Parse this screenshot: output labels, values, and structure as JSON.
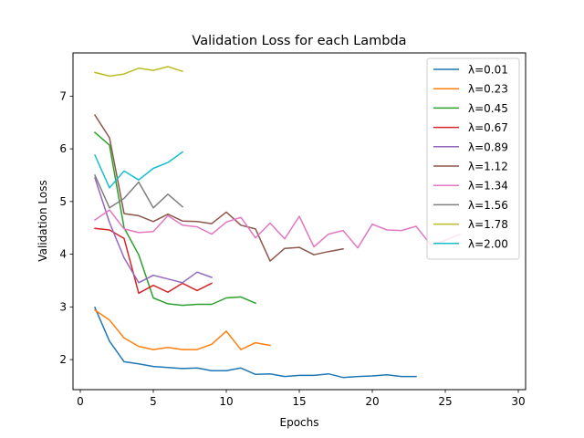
{
  "chart_data": {
    "type": "line",
    "title": "Validation Loss for each Lambda",
    "xlabel": "Epochs",
    "ylabel": "Validation Loss",
    "xlim": [
      -0.5,
      30.5
    ],
    "ylim": [
      1.43,
      7.82
    ],
    "xticks": [
      0,
      5,
      10,
      15,
      20,
      25,
      30
    ],
    "yticks": [
      2,
      3,
      4,
      5,
      6,
      7
    ],
    "grid": false,
    "legend_position": "top-right",
    "series": [
      {
        "name": "λ=0.01",
        "color": "#1f77b4",
        "x": [
          1,
          2,
          3,
          4,
          5,
          6,
          7,
          8,
          9,
          10,
          11,
          12,
          13,
          14,
          15,
          16,
          17,
          18,
          19,
          20,
          21,
          22,
          23
        ],
        "y": [
          2.99,
          2.35,
          1.96,
          1.92,
          1.87,
          1.85,
          1.83,
          1.84,
          1.79,
          1.79,
          1.84,
          1.72,
          1.73,
          1.68,
          1.7,
          1.7,
          1.73,
          1.66,
          1.68,
          1.69,
          1.71,
          1.68,
          1.68
        ]
      },
      {
        "name": "λ=0.23",
        "color": "#ff7f0e",
        "x": [
          1,
          2,
          3,
          4,
          5,
          6,
          7,
          8,
          9,
          10,
          11,
          12,
          13
        ],
        "y": [
          2.94,
          2.75,
          2.41,
          2.25,
          2.19,
          2.23,
          2.19,
          2.19,
          2.29,
          2.54,
          2.19,
          2.32,
          2.27
        ]
      },
      {
        "name": "λ=0.45",
        "color": "#2ca02c",
        "x": [
          1,
          2,
          3,
          4,
          5,
          6,
          7,
          8,
          9,
          10,
          11,
          12
        ],
        "y": [
          6.31,
          6.07,
          4.5,
          3.99,
          3.17,
          3.06,
          3.03,
          3.05,
          3.05,
          3.17,
          3.19,
          3.07
        ]
      },
      {
        "name": "λ=0.67",
        "color": "#d62728",
        "x": [
          1,
          2,
          3,
          4,
          5,
          6,
          7,
          8,
          9
        ],
        "y": [
          4.49,
          4.46,
          4.3,
          3.26,
          3.41,
          3.28,
          3.45,
          3.31,
          3.45
        ]
      },
      {
        "name": "λ=0.89",
        "color": "#9467bd",
        "x": [
          1,
          2,
          3,
          4,
          5,
          6,
          7,
          8,
          9
        ],
        "y": [
          5.45,
          4.6,
          3.93,
          3.46,
          3.6,
          3.53,
          3.46,
          3.66,
          3.56
        ]
      },
      {
        "name": "λ=1.12",
        "color": "#8c564b",
        "x": [
          1,
          2,
          3,
          4,
          5,
          6,
          7,
          8,
          9,
          10,
          11,
          12,
          13,
          14,
          15,
          16,
          17,
          18
        ],
        "y": [
          6.64,
          6.21,
          4.77,
          4.73,
          4.62,
          4.76,
          4.63,
          4.62,
          4.58,
          4.8,
          4.55,
          4.48,
          3.87,
          4.11,
          4.13,
          3.99,
          4.05,
          4.1
        ]
      },
      {
        "name": "λ=1.34",
        "color": "#e377c2",
        "x": [
          1,
          2,
          3,
          4,
          5,
          6,
          7,
          8,
          9,
          10,
          11,
          12,
          13,
          14,
          15,
          16,
          17,
          18,
          19,
          20,
          21,
          22,
          23,
          24,
          25,
          26
        ],
        "y": [
          4.65,
          4.84,
          4.48,
          4.41,
          4.43,
          4.73,
          4.55,
          4.52,
          4.38,
          4.61,
          4.7,
          4.31,
          4.59,
          4.29,
          4.72,
          4.14,
          4.38,
          4.45,
          4.12,
          4.57,
          4.46,
          4.45,
          4.53,
          4.18,
          4.26,
          4.38
        ]
      },
      {
        "name": "λ=1.56",
        "color": "#7f7f7f",
        "x": [
          1,
          2,
          3,
          4,
          5,
          6,
          7
        ],
        "y": [
          5.5,
          4.88,
          5.06,
          5.37,
          4.88,
          5.14,
          4.9
        ]
      },
      {
        "name": "λ=1.78",
        "color": "#bcbd22",
        "x": [
          1,
          2,
          3,
          4,
          5,
          6,
          7
        ],
        "y": [
          7.45,
          7.38,
          7.42,
          7.53,
          7.49,
          7.56,
          7.47
        ]
      },
      {
        "name": "λ=2.00",
        "color": "#17becf",
        "x": [
          1,
          2,
          3,
          4,
          5,
          6,
          7
        ],
        "y": [
          5.88,
          5.26,
          5.58,
          5.41,
          5.63,
          5.74,
          5.94
        ]
      }
    ]
  }
}
